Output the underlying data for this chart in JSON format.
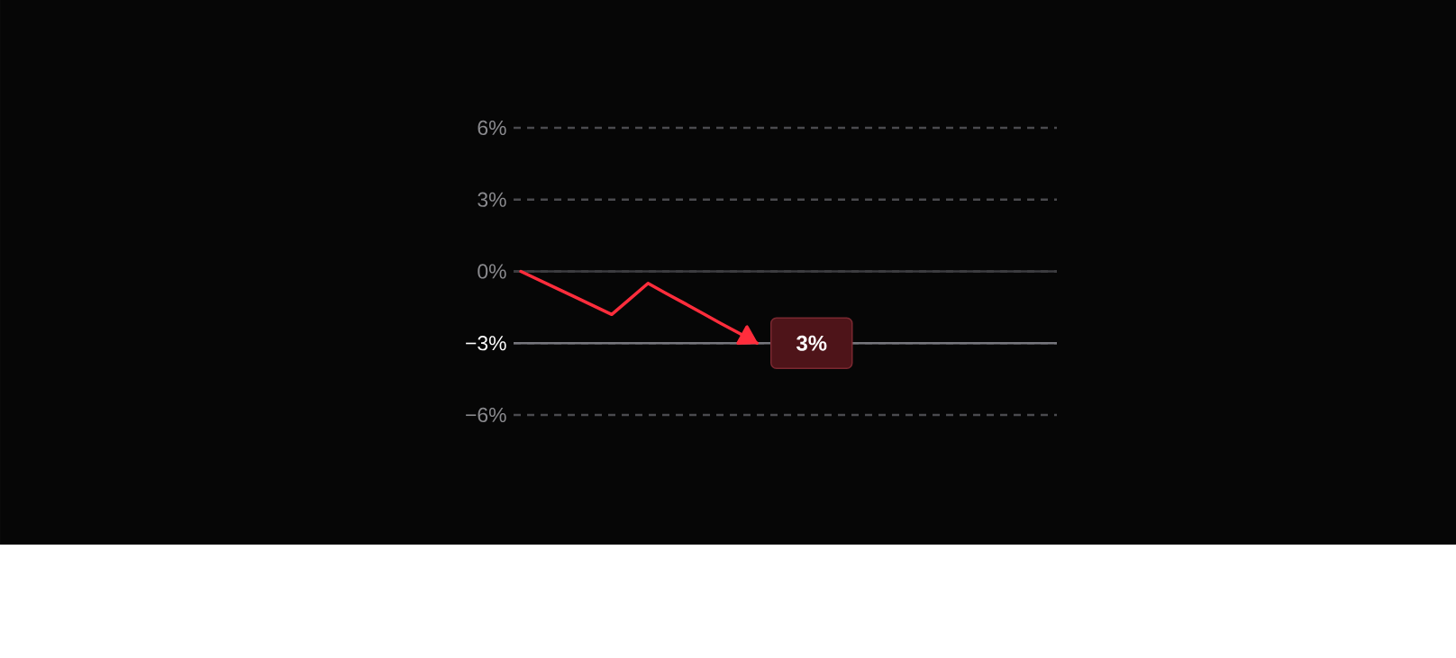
{
  "chart_data": {
    "type": "line",
    "categories": [
      null,
      null,
      null,
      null,
      null,
      null,
      null,
      null,
      null,
      null,
      null,
      null,
      null,
      null,
      null,
      null,
      null,
      null,
      null,
      null,
      null,
      null,
      null,
      null,
      null,
      null,
      null,
      null,
      null,
      null
    ],
    "series": [
      {
        "color": "#ff2d3c",
        "values": [
          0,
          -0.36,
          -0.72,
          -1.08,
          -1.44,
          -1.8,
          -1.15,
          -0.5,
          -0.92,
          -1.33,
          -1.75,
          -2.17,
          -2.58,
          -3,
          null,
          null,
          null,
          null,
          null,
          null,
          null,
          null,
          null,
          null,
          null,
          null,
          null,
          null,
          null,
          null
        ]
      }
    ],
    "ylim": [
      -6,
      6
    ],
    "yticks": [
      {
        "value": 6,
        "label": "6%"
      },
      {
        "value": 3,
        "label": "3%"
      },
      {
        "value": 0,
        "label": "0%"
      },
      {
        "value": -3,
        "label": "−3%"
      },
      {
        "value": -6,
        "label": "−6%"
      }
    ],
    "grid": "y",
    "marker": "none",
    "line_style": "solid",
    "ref_lines": [
      {
        "axis": "y",
        "value": 0,
        "color": "#3c3c40"
      },
      {
        "axis": "y",
        "value": -3,
        "color": "#76767c"
      }
    ],
    "annotations": [
      {
        "text": "3%",
        "y": -3
      }
    ]
  }
}
